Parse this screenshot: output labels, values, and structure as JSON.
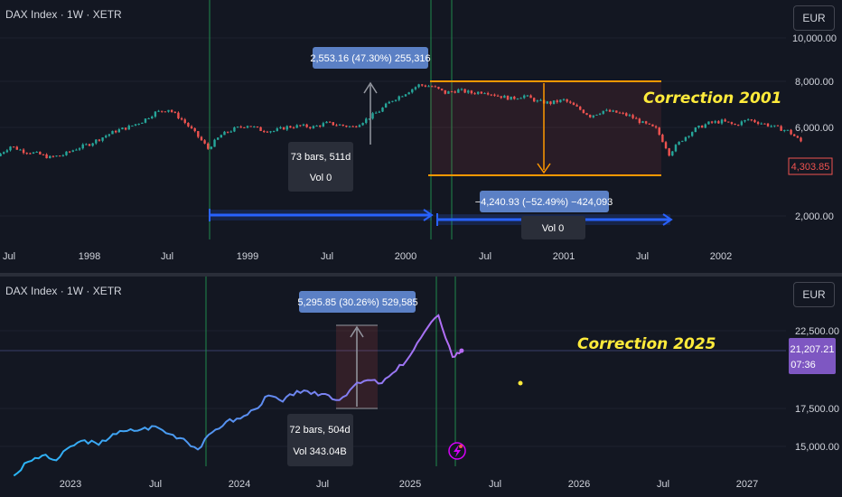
{
  "top": {
    "symbol": "DAX Index · 1W · XETR",
    "currency": "EUR",
    "y_ticks": [
      "10,000.00",
      "8,000.00",
      "6,000.00",
      "2,000.00"
    ],
    "price_badge": "4,303.85",
    "x_ticks": [
      "Jul",
      "1998",
      "Jul",
      "1999",
      "Jul",
      "2000",
      "Jul",
      "2001",
      "Jul",
      "2002"
    ],
    "correction_label": "Correction 2001",
    "measure_up": "2,553.16 (47.30%) 255,316",
    "measure_bars": "73 bars, 511d",
    "measure_vol": "Vol 0",
    "measure_down": "−4,240.93 (−52.49%) −424,093",
    "measure_down_vol": "Vol 0"
  },
  "bottom": {
    "symbol": "DAX Index · 1W · XETR",
    "currency": "EUR",
    "y_ticks": [
      "22,500.00",
      "17,500.00",
      "15,000.00"
    ],
    "price_badge": "21,207.21",
    "price_badge_time": "07:36",
    "x_ticks": [
      "2023",
      "Jul",
      "2024",
      "Jul",
      "2025",
      "Jul",
      "2026",
      "Jul",
      "2027"
    ],
    "correction_label": "Correction 2025",
    "measure_up": "5,295.85 (30.26%) 529,585",
    "measure_bars": "72 bars, 504d",
    "measure_vol": "Vol 343.04B"
  },
  "colors": {
    "up": "#26a69a",
    "down": "#ef5350",
    "line_start": "#2196f3",
    "line_end": "#b86bf5",
    "accent": "#ff9800",
    "label": "#ffeb3b"
  },
  "chart_data": [
    {
      "type": "candlestick",
      "title": "DAX Index · 1W · XETR",
      "x_range": [
        "1997-05",
        "2002-08"
      ],
      "ylim": [
        1500,
        10500
      ],
      "y_scale": "log",
      "x": [
        "1997-06",
        "1997-07",
        "1997-08",
        "1997-09",
        "1997-10",
        "1997-11",
        "1997-12",
        "1998-01",
        "1998-02",
        "1998-03",
        "1998-04",
        "1998-05",
        "1998-06",
        "1998-07",
        "1998-08",
        "1998-09",
        "1998-10",
        "1998-11",
        "1998-12",
        "1999-01",
        "1999-02",
        "1999-03",
        "1999-04",
        "1999-05",
        "1999-06",
        "1999-07",
        "1999-08",
        "1999-09",
        "1999-10",
        "1999-11",
        "1999-12",
        "2000-01",
        "2000-02",
        "2000-03",
        "2000-04",
        "2000-05",
        "2000-06",
        "2000-07",
        "2000-08",
        "2000-09",
        "2000-10",
        "2000-11",
        "2000-12",
        "2001-01",
        "2001-02",
        "2001-03",
        "2001-04",
        "2001-05",
        "2001-06",
        "2001-07",
        "2001-08",
        "2001-09",
        "2001-10",
        "2001-11",
        "2001-12",
        "2002-01",
        "2002-02",
        "2002-03",
        "2002-04",
        "2002-05",
        "2002-06",
        "2002-07"
      ],
      "close": [
        3700,
        4100,
        3900,
        3800,
        3650,
        3750,
        4000,
        4200,
        4500,
        4800,
        5000,
        5300,
        5800,
        6000,
        5400,
        4700,
        4000,
        4600,
        4900,
        5100,
        4850,
        4800,
        5000,
        5050,
        5000,
        5200,
        5100,
        5000,
        5400,
        5900,
        6600,
        7100,
        7700,
        7600,
        7100,
        7300,
        7100,
        7200,
        6900,
        6700,
        6900,
        6500,
        6400,
        6600,
        6100,
        5600,
        5900,
        5800,
        5600,
        5200,
        4900,
        3800,
        4400,
        4900,
        5200,
        5300,
        5100,
        5400,
        5200,
        5000,
        4800,
        4304
      ]
    },
    {
      "type": "line",
      "title": "DAX Index · 1W · XETR",
      "x_range": [
        "2022-09",
        "2027-04"
      ],
      "ylim": [
        13500,
        25500
      ],
      "x": [
        "2022-09",
        "2022-10",
        "2022-11",
        "2022-12",
        "2023-01",
        "2023-02",
        "2023-03",
        "2023-04",
        "2023-05",
        "2023-06",
        "2023-07",
        "2023-08",
        "2023-09",
        "2023-10",
        "2023-11",
        "2023-12",
        "2024-01",
        "2024-02",
        "2024-03",
        "2024-04",
        "2024-05",
        "2024-06",
        "2024-07",
        "2024-08",
        "2024-09",
        "2024-10",
        "2024-11",
        "2024-12",
        "2025-01",
        "2025-02",
        "2025-03",
        "2025-04",
        "2025-04-20"
      ],
      "y": [
        13100,
        14000,
        14400,
        14100,
        15000,
        15400,
        15100,
        15800,
        16000,
        16100,
        16300,
        15800,
        15500,
        14800,
        15900,
        16600,
        16800,
        17400,
        18300,
        17900,
        18600,
        18400,
        18400,
        18000,
        18900,
        19300,
        19100,
        19900,
        20900,
        22400,
        23500,
        20800,
        21207
      ]
    }
  ]
}
